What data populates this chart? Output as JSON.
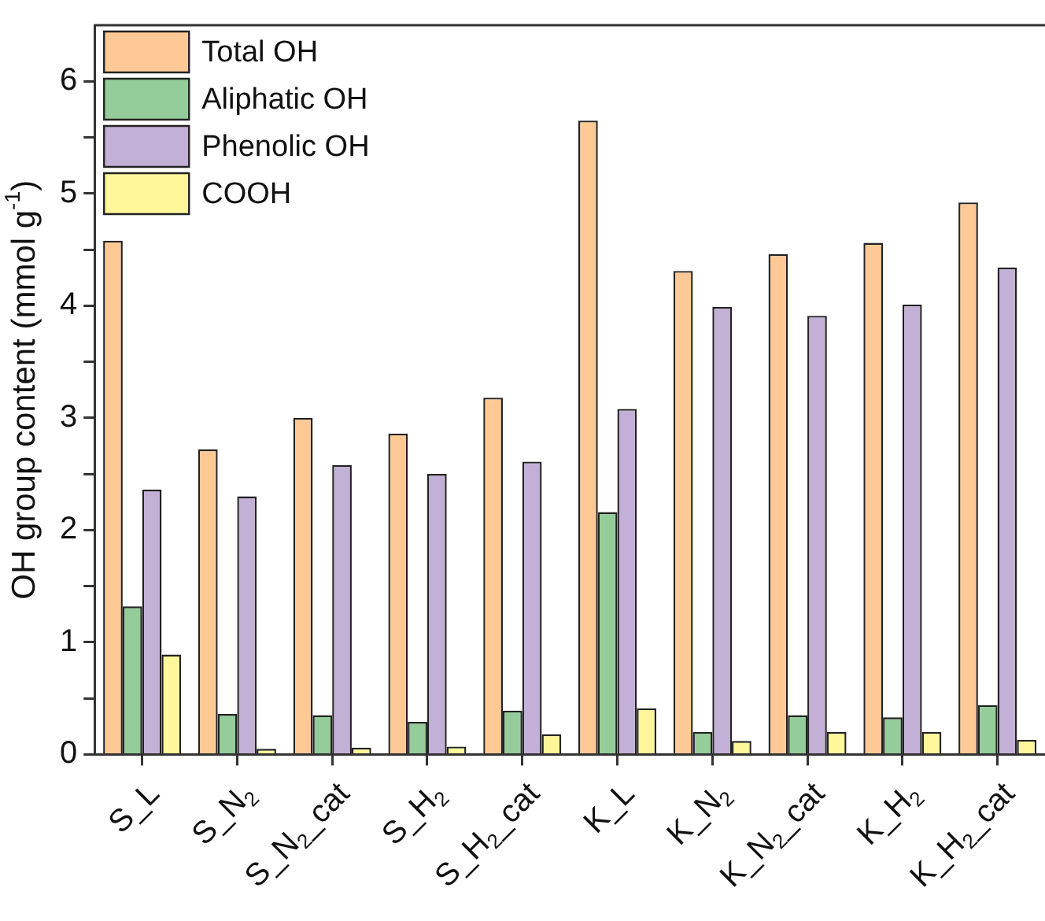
{
  "chart_data": {
    "type": "bar",
    "ylabel": "OH group content (mmol g$^{-1}$)",
    "categories": [
      "S_L",
      "S_N$_{2}$",
      "S_N$_{2}$_cat",
      "S_H$_{2}$",
      "S_H$_{2}$_cat",
      "K_L",
      "K_N$_{2}$",
      "K_N$_{2}$_cat",
      "K_H$_{2}$",
      "K_H$_{2}$_cat"
    ],
    "series": [
      {
        "name": "Total OH",
        "color": "#ffc996",
        "values": [
          4.58,
          2.72,
          3.0,
          2.86,
          3.18,
          5.65,
          4.31,
          4.46,
          4.56,
          4.92
        ]
      },
      {
        "name": "Aliphatic OH",
        "color": "#94cc9a",
        "values": [
          1.32,
          0.36,
          0.35,
          0.29,
          0.39,
          2.16,
          0.2,
          0.35,
          0.33,
          0.44
        ]
      },
      {
        "name": "Phenolic OH",
        "color": "#c3b0d6",
        "values": [
          2.36,
          2.3,
          2.58,
          2.5,
          2.61,
          3.08,
          3.99,
          3.91,
          4.01,
          4.34
        ]
      },
      {
        "name": "COOH",
        "color": "#fff79a",
        "values": [
          0.89,
          0.05,
          0.06,
          0.07,
          0.18,
          0.41,
          0.12,
          0.2,
          0.2,
          0.13
        ]
      }
    ],
    "ylim": [
      0,
      6.5
    ],
    "yticks": [
      0,
      {
        "value": 0.5,
        "label": null
      },
      1,
      {
        "value": 1.5,
        "label": null
      },
      2,
      {
        "value": 2.5,
        "label": null
      },
      3,
      {
        "value": 3.5,
        "label": null
      },
      4,
      {
        "value": 4.5,
        "label": null
      },
      5,
      {
        "value": 5.5,
        "label": null
      },
      6
    ],
    "grid": false,
    "legend": "top left"
  }
}
